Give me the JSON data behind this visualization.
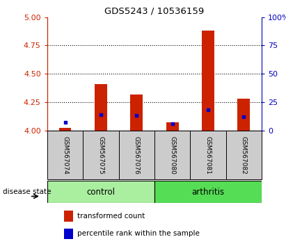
{
  "title": "GDS5243 / 10536159",
  "categories": [
    "GSM567074",
    "GSM567075",
    "GSM567076",
    "GSM567080",
    "GSM567081",
    "GSM567082"
  ],
  "red_values": [
    4.02,
    4.41,
    4.32,
    4.07,
    4.88,
    4.28
  ],
  "blue_values": [
    4.07,
    4.14,
    4.13,
    4.06,
    4.18,
    4.12
  ],
  "baseline": 4.0,
  "ylim_left": [
    4.0,
    5.0
  ],
  "ylim_right": [
    0,
    100
  ],
  "yticks_left": [
    4.0,
    4.25,
    4.5,
    4.75,
    5.0
  ],
  "yticks_right": [
    0,
    25,
    50,
    75,
    100
  ],
  "left_color": "#cc2200",
  "right_color": "#0000bb",
  "control_color": "#aaeea0",
  "arthritis_color": "#55dd55",
  "label_area_color": "#cccccc",
  "red_bar_color": "#cc2200",
  "blue_marker_color": "#0000cc",
  "grid_color": "#000000",
  "n_control": 3,
  "n_arthritis": 3
}
